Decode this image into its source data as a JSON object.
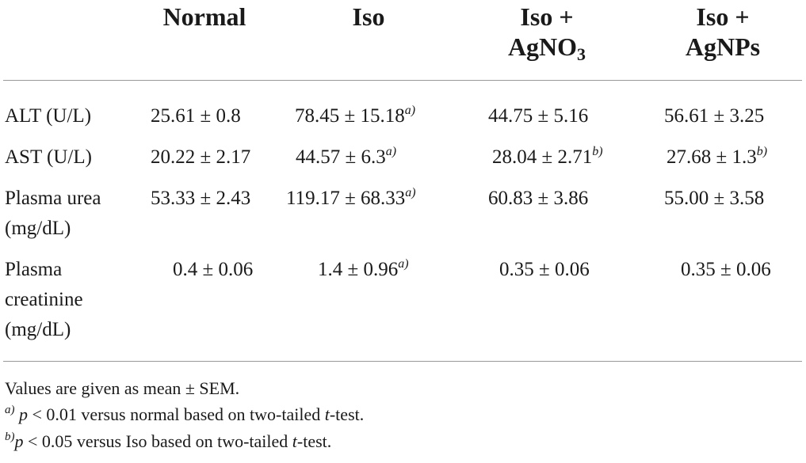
{
  "header": {
    "col1": "Normal",
    "col2": "Iso",
    "col3_line1": "Iso +",
    "col3_line2_base": "AgNO",
    "col3_line2_sub": "3",
    "col4_line1": "Iso +",
    "col4_line2": "AgNPs"
  },
  "rows": [
    {
      "label_lines": [
        "ALT (U/L)"
      ],
      "normal": "25.61 ± 0.8",
      "iso": "78.45 ± 15.18",
      "iso_sup": "a)",
      "agno3": "44.75 ± 5.16",
      "agno3_sup": "",
      "agnps": "56.61 ± 3.25",
      "agnps_sup": ""
    },
    {
      "label_lines": [
        "AST (U/L)"
      ],
      "normal": "20.22 ± 2.17",
      "iso": "44.57 ± 6.3",
      "iso_sup": "a)",
      "agno3": "28.04 ± 2.71",
      "agno3_sup": "b)",
      "agnps": "27.68 ± 1.3",
      "agnps_sup": "b)"
    },
    {
      "label_lines": [
        "Plasma urea",
        "(mg/dL)"
      ],
      "normal": "53.33 ± 2.43",
      "iso": "119.17 ± 68.33",
      "iso_sup": "a)",
      "agno3": "60.83 ± 3.86",
      "agno3_sup": "",
      "agnps": "55.00 ± 3.58",
      "agnps_sup": ""
    },
    {
      "label_lines": [
        "Plasma",
        "creatinine",
        "(mg/dL)"
      ],
      "normal": "0.4 ± 0.06",
      "iso": "1.4 ± 0.96",
      "iso_sup": "a)",
      "agno3": "0.35 ± 0.06",
      "agno3_sup": "",
      "agnps": "0.35 ± 0.06",
      "agnps_sup": ""
    }
  ],
  "footnotes": {
    "line1": "Values are given as mean ± SEM.",
    "a_mark": "a)",
    "a_p": "p",
    "a_text_1": " < 0.01 versus normal based on two-tailed ",
    "a_t": "t",
    "a_text_2": "-test.",
    "b_mark": "b)",
    "b_p": "p",
    "b_text_1": " < 0.05 versus Iso based on two-tailed ",
    "b_t": "t",
    "b_text_2": "-test."
  }
}
